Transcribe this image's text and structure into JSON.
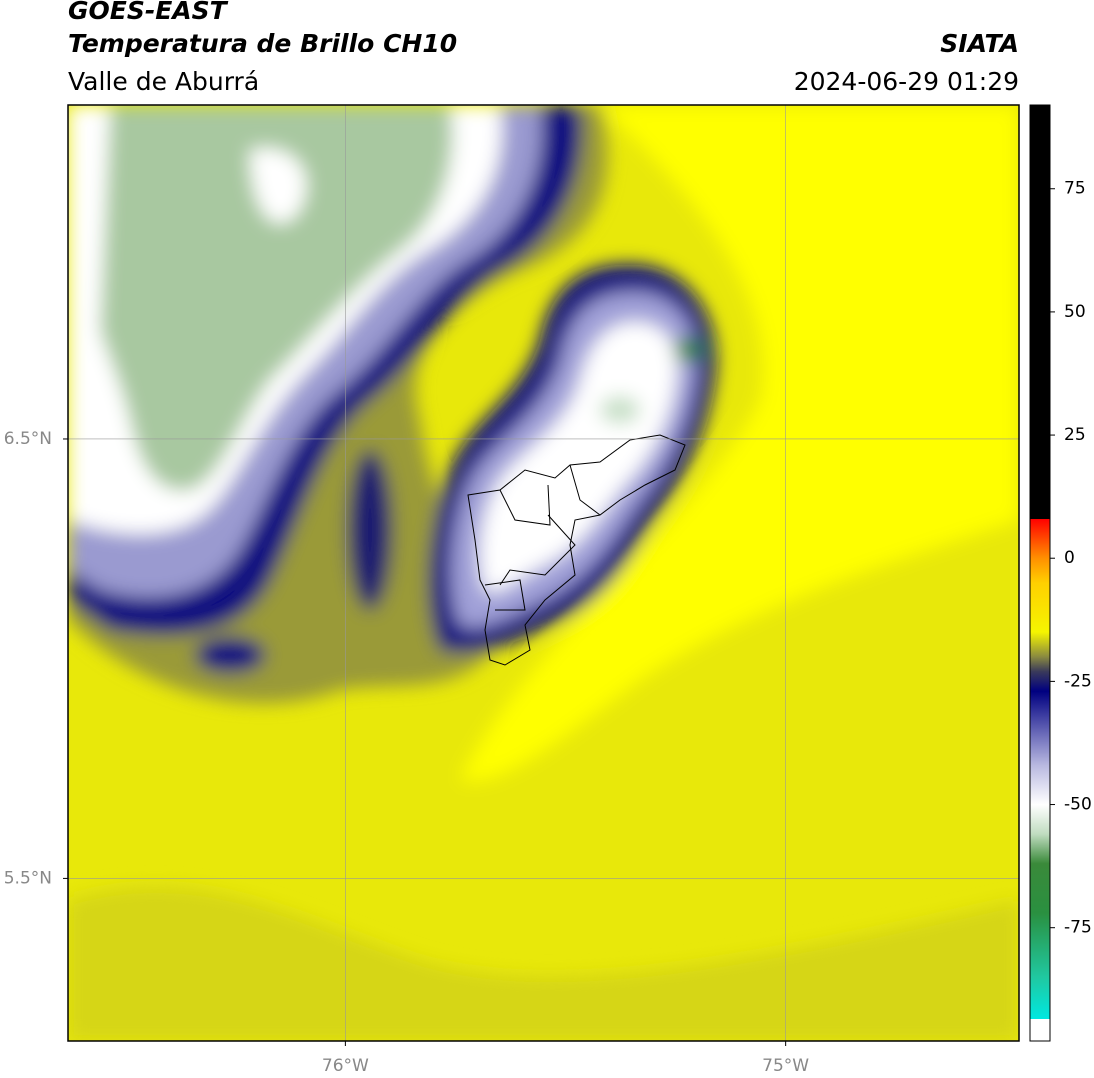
{
  "header": {
    "title": "GOES-EAST",
    "subtitle": "Temperatura de Brillo CH10",
    "region": "Valle de Aburrá",
    "source": "SIATA",
    "datetime": "2024-06-29 01:29"
  },
  "map": {
    "xlim": [
      -76.63,
      -74.47
    ],
    "ylim": [
      5.13,
      7.26
    ],
    "grid": true,
    "xticks": [
      {
        "value": -76,
        "label": "76°W"
      },
      {
        "value": -75,
        "label": "75°W"
      }
    ],
    "yticks": [
      {
        "value": 6.5,
        "label": "6.5°N"
      },
      {
        "value": 5.5,
        "label": "5.5°N"
      }
    ]
  },
  "colorbar": {
    "lim": [
      -98,
      92
    ],
    "ticks": [
      75,
      50,
      25,
      0,
      -25,
      -50,
      -75
    ],
    "stops": [
      {
        "value": -98,
        "color": "#ffffff"
      },
      {
        "value": -93.5,
        "color": "#ffffff"
      },
      {
        "value": -93.5,
        "color": "#00e8e0"
      },
      {
        "value": -85,
        "color": "#20c8a0"
      },
      {
        "value": -72,
        "color": "#2a9040"
      },
      {
        "value": -62,
        "color": "#3a8a3a"
      },
      {
        "value": -56,
        "color": "#c0dcc0"
      },
      {
        "value": -50,
        "color": "#ffffff"
      },
      {
        "value": -42,
        "color": "#b8b8e0"
      },
      {
        "value": -33,
        "color": "#4a4aa8"
      },
      {
        "value": -27,
        "color": "#000080"
      },
      {
        "value": -23,
        "color": "#3a3a5a"
      },
      {
        "value": -20,
        "color": "#8a8a40"
      },
      {
        "value": -15,
        "color": "#f5f500"
      },
      {
        "value": -5,
        "color": "#ffd000"
      },
      {
        "value": 0,
        "color": "#ff9000"
      },
      {
        "value": 8,
        "color": "#ff0000"
      },
      {
        "value": 8,
        "color": "#000000"
      },
      {
        "value": 92,
        "color": "#000000"
      }
    ]
  }
}
